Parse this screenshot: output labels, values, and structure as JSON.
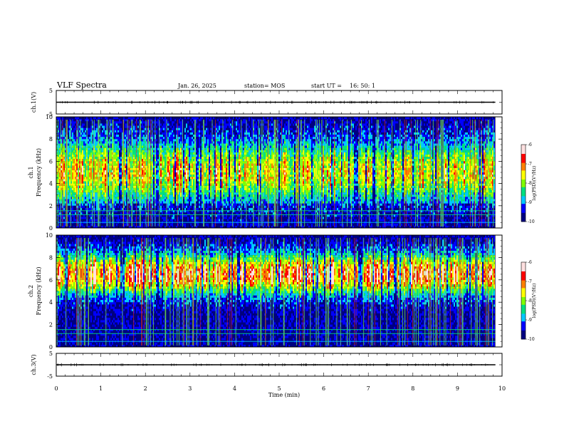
{
  "header": {
    "title": "VLF Spectra",
    "date": "Jan. 26, 2025",
    "station": "station= MOS",
    "start_label": "start  UT =",
    "start_time": "16: 50: 1"
  },
  "chart_data": [
    {
      "type": "line",
      "name": "ch1-waveform",
      "ylabel": "ch.1(V)",
      "ylim": [
        -5,
        5
      ],
      "yticks": [
        "5",
        "-5"
      ],
      "x": [
        0,
        1,
        2,
        3,
        4,
        5,
        6,
        7,
        8,
        9,
        9.85
      ],
      "y": [
        0,
        0,
        0,
        0,
        0,
        0,
        0,
        0,
        0,
        0,
        0
      ]
    },
    {
      "type": "heatmap",
      "name": "ch1-spectrogram",
      "ylabel_line1": "ch.1",
      "ylabel_line2": "Frequency (kHz)",
      "ylim": [
        0,
        10
      ],
      "yticks": [
        "0",
        "2",
        "4",
        "6",
        "8",
        "10"
      ],
      "xlim": [
        0,
        9.85
      ],
      "colorbar": {
        "label": "log(PSD)(V²/Hz)",
        "range": [
          -10,
          -6
        ],
        "ticks": [
          "-6",
          "-7",
          "-8",
          "-9",
          "-10"
        ],
        "colors": [
          "#000080",
          "#0000ff",
          "#00c8ff",
          "#00e080",
          "#80ff00",
          "#ffff00",
          "#ff8000",
          "#ff0000",
          "#ffe0e0",
          "#ffffff"
        ]
      },
      "band_center_khz": 5,
      "band_width_khz": 2.6
    },
    {
      "type": "heatmap",
      "name": "ch2-spectrogram",
      "ylabel_line1": "ch.2",
      "ylabel_line2": "Frequency (kHz)",
      "ylim": [
        0,
        10
      ],
      "yticks": [
        "0",
        "2",
        "4",
        "6",
        "8",
        "10"
      ],
      "xlim": [
        0,
        9.85
      ],
      "colorbar": {
        "label": "log(PSD)(V²/Hz)",
        "range": [
          -10,
          -6
        ],
        "ticks": [
          "-6",
          "-7",
          "-8",
          "-9",
          "-10"
        ],
        "colors": [
          "#000080",
          "#0000ff",
          "#00c8ff",
          "#00e080",
          "#80ff00",
          "#ffff00",
          "#ff8000",
          "#ff0000",
          "#ffe0e0",
          "#ffffff"
        ]
      },
      "band_center_khz": 6.5,
      "band_width_khz": 1.7
    },
    {
      "type": "line",
      "name": "ch3-waveform",
      "ylabel": "ch.3(V)",
      "ylim": [
        -5,
        5
      ],
      "yticks": [
        "5",
        "-5"
      ],
      "x": [
        0,
        1,
        2,
        3,
        4,
        5,
        6,
        7,
        8,
        9,
        9.85
      ],
      "y": [
        0,
        0,
        0,
        0,
        0,
        0,
        0,
        0,
        0,
        0,
        0
      ]
    }
  ],
  "xaxis": {
    "label": "Time (min)",
    "xlim": [
      0,
      10
    ],
    "ticks": [
      "0",
      "1",
      "2",
      "3",
      "4",
      "5",
      "6",
      "7",
      "8",
      "9",
      "10"
    ]
  }
}
